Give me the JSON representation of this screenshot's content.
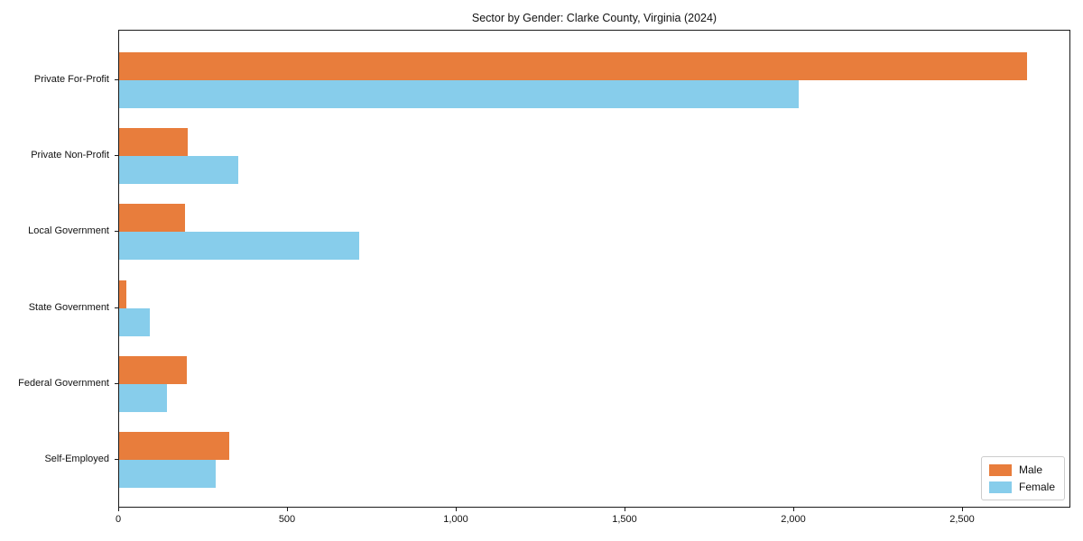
{
  "title": "Sector by Gender: Clarke County, Virginia (2024)",
  "chart_data": {
    "type": "bar",
    "orientation": "horizontal",
    "title": "Sector by Gender: Clarke County, Virginia (2024)",
    "xlabel": "",
    "ylabel": "",
    "categories": [
      "Private For-Profit",
      "Private Non-Profit",
      "Local Government",
      "State Government",
      "Federal Government",
      "Self-Employed"
    ],
    "series": [
      {
        "name": "Male",
        "color": "#e87d3c",
        "values": [
          2690,
          202,
          196,
          22,
          201,
          327
        ]
      },
      {
        "name": "Female",
        "color": "#87cdeb",
        "values": [
          2014,
          354,
          711,
          92,
          142,
          285
        ]
      }
    ],
    "xlim": [
      0,
      2820
    ],
    "xticks": [
      0,
      500,
      1000,
      1500,
      2000,
      2500
    ],
    "xtick_labels": [
      "0",
      "500",
      "1,000",
      "1,500",
      "2,000",
      "2,500"
    ],
    "grid": false,
    "legend_position": "lower right"
  },
  "colors": {
    "male": "#e87d3c",
    "female": "#87cdeb",
    "spine": "#1a1a1a",
    "background": "#ffffff",
    "legend_border": "#cccccc"
  }
}
